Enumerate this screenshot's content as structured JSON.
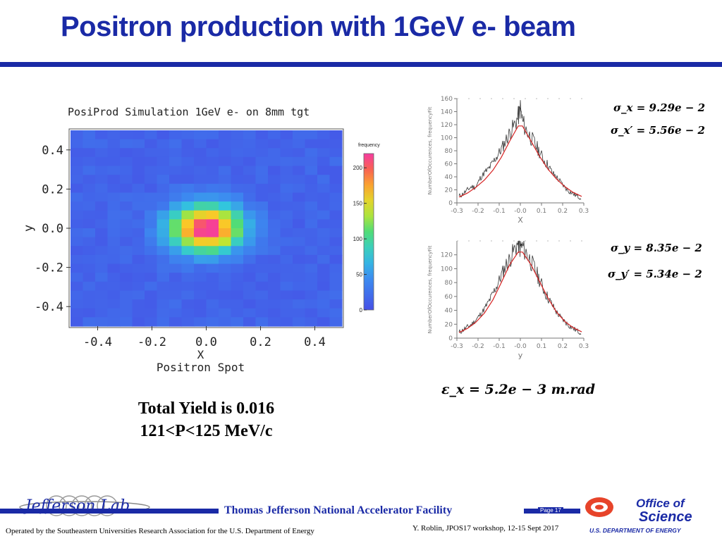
{
  "slide": {
    "title": "Positron production with 1GeV e- beam",
    "total_yield": "Total Yield is  0.016",
    "momentum_range": "121<P<125 MeV/c",
    "emittance": "ε_x = 5.2e − 3 m.rad"
  },
  "equations": {
    "sigma_x": "σ_x = 9.29e − 2",
    "sigma_xp": "σ_x′ = 5.56e − 2",
    "sigma_y": "σ_y = 8.35e − 2",
    "sigma_yp": "σ_y′ = 5.34e − 2"
  },
  "footer": {
    "lab_name": "Thomas Jefferson National Accelerator Facility",
    "page": "Page 17",
    "operated_by": "Operated by the Southeastern Universities Research Association for the U.S. Department of  Energy",
    "credit": "Y. Roblin, JPOS17 workshop, 12-15 Sept 2017",
    "jlab_logo_text": "Jefferson Lab",
    "doe_office": "Office of",
    "doe_science": "Science",
    "doe_dept": "U.S. DEPARTMENT OF ENERGY"
  },
  "chart_data": [
    {
      "type": "heatmap",
      "title": "PosiProd Simulation 1GeV e- on 8mm tgt",
      "xlabel": "X",
      "ylabel": "y",
      "subtitle": "Positron Spot",
      "xlim": [
        -0.5,
        0.5
      ],
      "ylim": [
        -0.5,
        0.5
      ],
      "x_ticks": [
        "-0.4",
        "-0.2",
        "0.0",
        "0.2",
        "0.4"
      ],
      "y_ticks": [
        "0.4",
        "0.2",
        "0.0",
        "-0.2",
        "-0.4"
      ],
      "colorbar_label": "frequency",
      "colorbar_ticks": [
        "200",
        "150",
        "100",
        "50",
        "0"
      ],
      "color_range": [
        0,
        220
      ],
      "peak_value": 210,
      "peak_center": [
        0.0,
        0.0
      ],
      "sigma": [
        0.093,
        0.084
      ],
      "background_level": 8
    },
    {
      "type": "line",
      "xlabel": "X",
      "ylabel": "NumberOfOccurences, frequencyFit",
      "xlim": [
        -0.3,
        0.3
      ],
      "ylim": [
        0,
        160
      ],
      "x_ticks": [
        "-0.3",
        "-0.2",
        "-0.1",
        "-0.0",
        "0.1",
        "0.2",
        "0.3"
      ],
      "y_ticks": [
        "160",
        "140",
        "120",
        "100",
        "80",
        "60",
        "40",
        "20",
        "0"
      ],
      "series": [
        {
          "color": "#333333",
          "x": [
            -0.29,
            -0.27,
            -0.25,
            -0.23,
            -0.21,
            -0.19,
            -0.17,
            -0.15,
            -0.13,
            -0.11,
            -0.09,
            -0.07,
            -0.05,
            -0.03,
            -0.01,
            0.0,
            0.01,
            0.03,
            0.05,
            0.07,
            0.09,
            0.11,
            0.13,
            0.15,
            0.17,
            0.19,
            0.21,
            0.23,
            0.25,
            0.27,
            0.29
          ],
          "y": [
            10,
            14,
            20,
            25,
            24,
            38,
            46,
            52,
            62,
            72,
            82,
            95,
            108,
            118,
            132,
            145,
            125,
            110,
            100,
            90,
            78,
            66,
            58,
            46,
            40,
            32,
            24,
            18,
            14,
            10,
            8
          ]
        },
        {
          "color": "#d62222",
          "x": [
            -0.29,
            -0.25,
            -0.21,
            -0.17,
            -0.13,
            -0.09,
            -0.05,
            -0.01,
            0.01,
            0.05,
            0.09,
            0.13,
            0.17,
            0.21,
            0.25,
            0.29
          ],
          "y": [
            9,
            15,
            24,
            35,
            50,
            70,
            95,
            118,
            118,
            95,
            72,
            52,
            37,
            25,
            16,
            10
          ]
        }
      ]
    },
    {
      "type": "line",
      "xlabel": "y",
      "ylabel": "NumberOfOccurences, frequencyFit",
      "xlim": [
        -0.3,
        0.3
      ],
      "ylim": [
        0,
        140
      ],
      "x_ticks": [
        "-0.3",
        "-0.2",
        "-0.1",
        "-0.0",
        "0.1",
        "0.2",
        "0.3"
      ],
      "y_ticks": [
        "120",
        "100",
        "80",
        "60",
        "40",
        "20",
        "0"
      ],
      "series": [
        {
          "color": "#333333",
          "x": [
            -0.29,
            -0.27,
            -0.25,
            -0.23,
            -0.21,
            -0.19,
            -0.17,
            -0.15,
            -0.13,
            -0.11,
            -0.09,
            -0.07,
            -0.05,
            -0.03,
            -0.01,
            0.0,
            0.01,
            0.03,
            0.05,
            0.07,
            0.09,
            0.11,
            0.13,
            0.15,
            0.17,
            0.19,
            0.21,
            0.23,
            0.25,
            0.27,
            0.29
          ],
          "y": [
            8,
            12,
            16,
            20,
            26,
            34,
            42,
            52,
            64,
            76,
            90,
            104,
            114,
            126,
            138,
            130,
            132,
            122,
            110,
            98,
            84,
            70,
            58,
            48,
            38,
            30,
            24,
            18,
            14,
            10,
            8
          ]
        },
        {
          "color": "#d62222",
          "x": [
            -0.29,
            -0.25,
            -0.21,
            -0.17,
            -0.13,
            -0.09,
            -0.05,
            -0.01,
            0.01,
            0.05,
            0.09,
            0.13,
            0.17,
            0.21,
            0.25,
            0.29
          ],
          "y": [
            8,
            14,
            23,
            36,
            55,
            80,
            106,
            124,
            124,
            106,
            82,
            58,
            38,
            24,
            15,
            9
          ]
        }
      ]
    }
  ]
}
